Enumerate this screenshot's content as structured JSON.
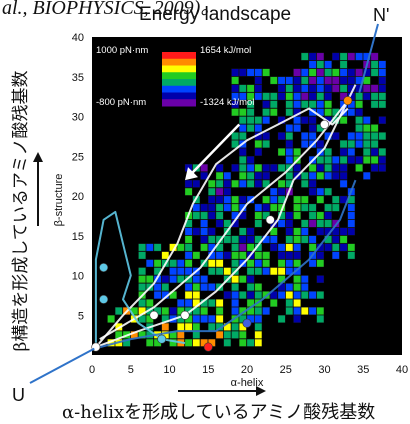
{
  "top_fragment": "al., BIOPHYSICS, 2009)。",
  "title": "Energy landscape",
  "label_n_prime": "N'",
  "label_u": "U",
  "outer_ylabel": "β構造を形成しているアミノ酸残基数",
  "outer_xlabel": "α-helixを形成しているアミノ酸残基数",
  "colors": {
    "plot_bg": "#000000",
    "arrow": "#ffffff",
    "line_blue": "#2f73c9"
  },
  "chart_data": {
    "type": "heatmap",
    "title": "Energy landscape",
    "xlabel": "α-helix",
    "ylabel": "β-structure",
    "xlim": [
      0,
      40
    ],
    "ylim": [
      0,
      40
    ],
    "xticks": [
      0,
      5,
      10,
      15,
      20,
      25,
      30,
      35,
      40
    ],
    "yticks": [
      5,
      10,
      15,
      20,
      25,
      30,
      35,
      40
    ],
    "grid": false,
    "legend_position": "top-left",
    "color_scale": {
      "top_left": "1000 pN·nm",
      "top_right": "1654 kJ/mol",
      "bottom_left": "-800 pN·nm",
      "bottom_right": "-1324 kJ/mol",
      "max_value": 1654,
      "min_value": -1324,
      "colors": [
        "#ff1a1a",
        "#ff8c00",
        "#ffff00",
        "#22cc22",
        "#00aa66",
        "#0044ff",
        "#0000aa",
        "#6a00a8"
      ]
    },
    "bands": [
      {
        "x": [
          2,
          22
        ],
        "y": [
          1,
          6
        ],
        "value": 500
      },
      {
        "x": [
          6,
          30
        ],
        "y": [
          4,
          14
        ],
        "value": 0
      },
      {
        "x": [
          12,
          34
        ],
        "y": [
          12,
          24
        ],
        "value": -300
      },
      {
        "x": [
          18,
          38
        ],
        "y": [
          22,
          36
        ],
        "value": -200
      },
      {
        "x": [
          26,
          38
        ],
        "y": [
          32,
          38
        ],
        "value": -600
      }
    ],
    "trajectories": [
      {
        "color": "#ffffff",
        "points": [
          [
            0.5,
            1
          ],
          [
            4,
            5
          ],
          [
            8,
            9
          ],
          [
            11,
            14
          ],
          [
            13,
            19
          ],
          [
            16,
            24
          ],
          [
            20,
            27
          ],
          [
            24,
            29
          ],
          [
            28,
            31
          ],
          [
            31,
            29
          ],
          [
            33,
            31
          ]
        ]
      },
      {
        "color": "#ffffff",
        "points": [
          [
            0.5,
            1
          ],
          [
            6,
            3
          ],
          [
            12,
            5
          ],
          [
            16,
            8
          ],
          [
            20,
            12
          ],
          [
            24,
            17
          ],
          [
            26,
            22
          ],
          [
            30,
            26
          ],
          [
            32,
            30
          ],
          [
            34,
            34
          ]
        ]
      },
      {
        "color": "#ffffff",
        "points": [
          [
            1,
            2
          ],
          [
            8,
            6
          ],
          [
            14,
            11
          ],
          [
            17,
            15
          ],
          [
            20,
            19
          ],
          [
            25,
            23
          ],
          [
            29,
            27
          ],
          [
            33,
            32
          ]
        ]
      },
      {
        "color": "#5ec8e6",
        "points": [
          [
            0.5,
            1
          ],
          [
            0.5,
            5
          ],
          [
            0.5,
            12
          ],
          [
            1.5,
            17
          ],
          [
            3,
            18
          ],
          [
            4,
            14
          ],
          [
            5,
            10
          ],
          [
            4,
            7
          ],
          [
            6,
            4
          ],
          [
            9,
            2
          ],
          [
            12,
            1.5
          ]
        ]
      },
      {
        "color": "#2f73c9",
        "points": [
          [
            0.3,
            0.8
          ],
          [
            5,
            2
          ],
          [
            11,
            3
          ],
          [
            16,
            3
          ],
          [
            22,
            7
          ],
          [
            28,
            12
          ],
          [
            32,
            17
          ],
          [
            34,
            22
          ]
        ]
      }
    ],
    "markers": [
      {
        "x": 0.5,
        "y": 1,
        "color": "#ffffff"
      },
      {
        "x": 1.5,
        "y": 11,
        "color": "#5ec8e6"
      },
      {
        "x": 1.5,
        "y": 7,
        "color": "#5ec8e6"
      },
      {
        "x": 9,
        "y": 2,
        "color": "#5ec8e6"
      },
      {
        "x": 8,
        "y": 5,
        "color": "#ffffff"
      },
      {
        "x": 15,
        "y": 1,
        "color": "#ff2020"
      },
      {
        "x": 12,
        "y": 5,
        "color": "#ffffff"
      },
      {
        "x": 30,
        "y": 29,
        "color": "#ffffff"
      },
      {
        "x": 33,
        "y": 32,
        "color": "#ff8c00"
      },
      {
        "x": 23,
        "y": 17,
        "color": "#ffffff"
      },
      {
        "x": 20,
        "y": 4,
        "color": "#4060e0"
      }
    ],
    "arrow": {
      "from": [
        19,
        29
      ],
      "to": [
        12,
        22
      ]
    }
  }
}
